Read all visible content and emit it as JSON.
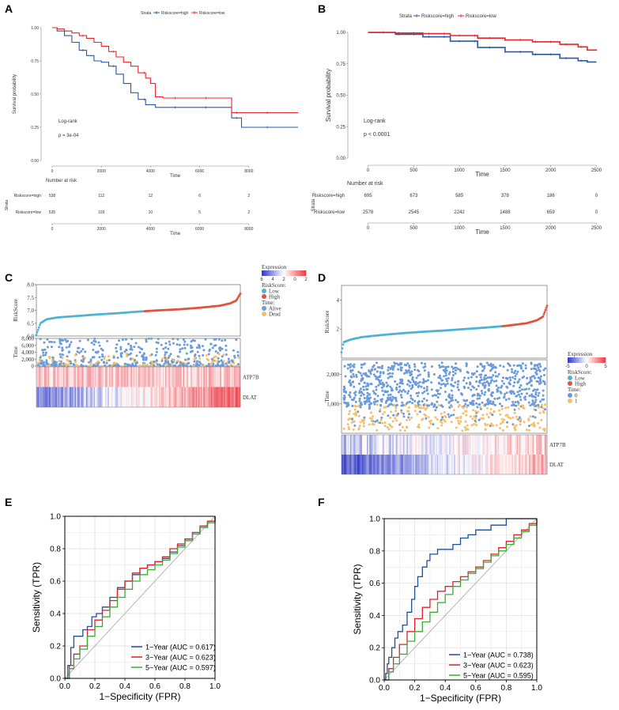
{
  "colors": {
    "high": "#2b5aa5",
    "low": "#e8242a",
    "risk_low": "#4eb3d3",
    "risk_high": "#e0533d",
    "alive": "#6b9bd8",
    "dead": "#f5c06b",
    "roc_1": "#1f4e9a",
    "roc_3": "#e0202a",
    "roc_5": "#3aaa35",
    "diag": "#b5b5b5"
  },
  "panels": {
    "A": {
      "letter": "A"
    },
    "B": {
      "letter": "B"
    },
    "C": {
      "letter": "C"
    },
    "D": {
      "letter": "D"
    },
    "E": {
      "letter": "E"
    },
    "F": {
      "letter": "F"
    }
  },
  "chart_data": [
    {
      "id": "A",
      "type": "line",
      "kind": "kaplan-meier",
      "title": "",
      "legend_title": "Strata",
      "legend": [
        "Riskscore=high",
        "Riskscore=low"
      ],
      "xlabel": "Time",
      "ylabel": "Survival probability",
      "xlim": [
        0,
        10000
      ],
      "ylim": [
        0,
        1
      ],
      "xticks": [
        0,
        2000,
        4000,
        6000,
        8000
      ],
      "xtick_labels": [
        "0",
        "2000",
        "4000",
        "6000",
        "8000"
      ],
      "yticks": [
        0,
        0.25,
        0.5,
        0.75,
        1
      ],
      "ytick_labels": [
        "0.00",
        "0.25",
        "0.50",
        "0.75",
        "1.00"
      ],
      "annotation_lines": [
        "Log-rank",
        "p = 3e-04"
      ],
      "series": [
        {
          "name": "Riskscore=high",
          "x": [
            0,
            200,
            500,
            800,
            1100,
            1400,
            1700,
            2000,
            2300,
            2600,
            2900,
            3200,
            3500,
            3800,
            4200,
            4700,
            5500,
            6500,
            7300,
            7700,
            8500,
            10000
          ],
          "values": [
            1.0,
            0.975,
            0.94,
            0.89,
            0.83,
            0.79,
            0.75,
            0.74,
            0.71,
            0.65,
            0.58,
            0.51,
            0.46,
            0.42,
            0.4,
            0.4,
            0.4,
            0.4,
            0.32,
            0.25,
            0.25,
            0.25
          ]
        },
        {
          "name": "Riskscore=low",
          "x": [
            0,
            200,
            500,
            800,
            1100,
            1400,
            1700,
            2000,
            2300,
            2600,
            2900,
            3200,
            3500,
            3800,
            4000,
            4200,
            4500,
            5500,
            7300,
            8500,
            10000
          ],
          "values": [
            1.0,
            0.99,
            0.975,
            0.96,
            0.94,
            0.92,
            0.89,
            0.86,
            0.82,
            0.78,
            0.74,
            0.71,
            0.66,
            0.62,
            0.58,
            0.48,
            0.47,
            0.47,
            0.36,
            0.36,
            0.36
          ]
        }
      ],
      "risk_table": {
        "title": "Number at risk",
        "ylabel": "Strata",
        "xlabel": "Time",
        "times": [
          "0",
          "2000",
          "4000",
          "6000",
          "8000"
        ],
        "rows": [
          {
            "label": "Riskscore=high",
            "values": [
              "538",
              "112",
              "12",
              "6",
              "2"
            ]
          },
          {
            "label": "Riskscore=low",
            "values": [
              "535",
              "109",
              "10",
              "5",
              "2"
            ]
          }
        ]
      }
    },
    {
      "id": "B",
      "type": "line",
      "kind": "kaplan-meier",
      "title": "",
      "legend_title": "Strata",
      "legend": [
        "Riskscore=high",
        "Riskscore=low"
      ],
      "xlabel": "Time",
      "ylabel": "Survival probability",
      "xlim": [
        -100,
        2600
      ],
      "ylim": [
        0,
        1
      ],
      "xticks": [
        0,
        500,
        1000,
        1500,
        2000,
        2500
      ],
      "xtick_labels": [
        "0",
        "500",
        "1000",
        "1500",
        "2000",
        "2500"
      ],
      "yticks": [
        0,
        0.25,
        0.5,
        0.75,
        1
      ],
      "ytick_labels": [
        "0.00",
        "0.25",
        "0.50",
        "0.75",
        "1.00"
      ],
      "annotation_lines": [
        "Log-rank",
        "p < 0.0001"
      ],
      "series": [
        {
          "name": "Riskscore=high",
          "x": [
            0,
            300,
            600,
            900,
            1200,
            1500,
            1800,
            2100,
            2300,
            2400,
            2500
          ],
          "values": [
            1.0,
            0.985,
            0.965,
            0.93,
            0.88,
            0.845,
            0.825,
            0.795,
            0.775,
            0.765,
            0.765
          ]
        },
        {
          "name": "Riskscore=low",
          "x": [
            0,
            300,
            600,
            900,
            1200,
            1500,
            1800,
            2100,
            2300,
            2400,
            2500
          ],
          "values": [
            1.0,
            0.995,
            0.99,
            0.975,
            0.955,
            0.94,
            0.925,
            0.905,
            0.885,
            0.86,
            0.855
          ]
        }
      ],
      "risk_table": {
        "title": "Number at risk",
        "ylabel": "Strata",
        "xlabel": "Time",
        "times": [
          "0",
          "500",
          "1000",
          "1500",
          "2000",
          "2500"
        ],
        "rows": [
          {
            "label": "Riskscore=high",
            "values": [
              "695",
              "673",
              "585",
              "378",
              "186",
              "0"
            ]
          },
          {
            "label": "Riskscore=low",
            "values": [
              "2578",
              "2545",
              "2242",
              "1488",
              "659",
              "0"
            ]
          }
        ]
      }
    },
    {
      "id": "C",
      "type": "scatter",
      "kind": "risk-score-distribution",
      "ylabel_top": "RiskScore",
      "ylim_top": [
        6.0,
        8.0
      ],
      "yticks_top": [
        "6.0",
        "6.5",
        "7.0",
        "7.5",
        "8.0"
      ],
      "riskscore_curve": {
        "rank_fraction": [
          0,
          0.02,
          0.05,
          0.1,
          0.2,
          0.3,
          0.4,
          0.5,
          0.6,
          0.7,
          0.8,
          0.9,
          0.95,
          0.98,
          1.0
        ],
        "values": [
          6.05,
          6.5,
          6.65,
          6.72,
          6.78,
          6.84,
          6.89,
          6.95,
          7.0,
          7.04,
          7.1,
          7.18,
          7.27,
          7.38,
          7.65
        ]
      },
      "cutoff_fraction": 0.53,
      "ylabel_mid": "Time",
      "ylim_mid": [
        0,
        8000
      ],
      "yticks_mid": [
        "0",
        "2,000",
        "4,000",
        "6,000",
        "8,000"
      ],
      "heatmap_genes": [
        "ATP7B",
        "DLAT"
      ],
      "legend": {
        "expression_title": "Expression",
        "expression_ticks": [
          "6",
          "4",
          "2",
          "0",
          "2"
        ],
        "riskscore_title": "RiskScore:",
        "riskscore_items": [
          "Low",
          "High"
        ],
        "time_title": "Time:",
        "time_items": [
          "Alive",
          "Dead"
        ]
      }
    },
    {
      "id": "D",
      "type": "scatter",
      "kind": "risk-score-distribution",
      "ylabel_top": "RiskScore",
      "ylim_top": [
        0,
        5
      ],
      "yticks_top": [
        "2",
        "4"
      ],
      "riskscore_curve": {
        "rank_fraction": [
          0,
          0.01,
          0.05,
          0.1,
          0.2,
          0.3,
          0.4,
          0.5,
          0.6,
          0.7,
          0.8,
          0.9,
          0.95,
          0.98,
          1.0
        ],
        "values": [
          0.4,
          1.1,
          1.3,
          1.45,
          1.6,
          1.72,
          1.82,
          1.9,
          2.0,
          2.1,
          2.22,
          2.4,
          2.6,
          2.85,
          3.6
        ]
      },
      "cutoff_fraction": 0.78,
      "ylabel_mid": "Time",
      "ylim_mid": [
        0,
        2500
      ],
      "yticks_mid": [
        "1,000",
        "2,000"
      ],
      "heatmap_genes": [
        "ATP7B",
        "DLAT"
      ],
      "legend": {
        "expression_title": "Expression",
        "expression_ticks": [
          "-5",
          "0",
          "5"
        ],
        "riskscore_title": "RiskScore:",
        "riskscore_items": [
          "Low",
          "High"
        ],
        "time_title": "Time:",
        "time_items": [
          "0",
          "1"
        ]
      }
    },
    {
      "id": "E",
      "type": "line",
      "kind": "roc",
      "xlabel": "1−Specificity (FPR)",
      "ylabel": "Sensitivity (TPR)",
      "xlim": [
        0,
        1
      ],
      "ylim": [
        0,
        1
      ],
      "ticks": [
        "0.0",
        "0.2",
        "0.4",
        "0.6",
        "0.8",
        "1.0"
      ],
      "series": [
        {
          "name": "1−Year (AUC = 0.617)",
          "x": [
            0,
            0.02,
            0.04,
            0.06,
            0.08,
            0.1,
            0.12,
            0.15,
            0.18,
            0.21,
            0.25,
            0.3,
            0.35,
            0.4,
            0.45,
            0.5,
            0.55,
            0.6,
            0.65,
            0.7,
            0.75,
            0.8,
            0.85,
            0.9,
            0.95,
            1.0
          ],
          "values": [
            0,
            0.08,
            0.19,
            0.26,
            0.26,
            0.26,
            0.3,
            0.32,
            0.38,
            0.4,
            0.44,
            0.5,
            0.56,
            0.6,
            0.64,
            0.68,
            0.7,
            0.72,
            0.74,
            0.78,
            0.82,
            0.86,
            0.9,
            0.93,
            0.97,
            1.0
          ]
        },
        {
          "name": "3−Year (AUC = 0.623)",
          "x": [
            0,
            0.03,
            0.06,
            0.1,
            0.15,
            0.2,
            0.25,
            0.3,
            0.35,
            0.4,
            0.45,
            0.5,
            0.55,
            0.6,
            0.65,
            0.7,
            0.75,
            0.8,
            0.85,
            0.9,
            0.95,
            1.0
          ],
          "values": [
            0,
            0.08,
            0.15,
            0.2,
            0.3,
            0.36,
            0.42,
            0.48,
            0.55,
            0.6,
            0.65,
            0.68,
            0.7,
            0.72,
            0.75,
            0.8,
            0.83,
            0.86,
            0.9,
            0.94,
            0.97,
            1.0
          ]
        },
        {
          "name": "5−Year (AUC = 0.597)",
          "x": [
            0,
            0.03,
            0.06,
            0.1,
            0.15,
            0.2,
            0.25,
            0.3,
            0.35,
            0.4,
            0.45,
            0.5,
            0.55,
            0.6,
            0.65,
            0.7,
            0.75,
            0.8,
            0.85,
            0.9,
            0.95,
            1.0
          ],
          "values": [
            0,
            0.06,
            0.12,
            0.18,
            0.26,
            0.32,
            0.38,
            0.44,
            0.5,
            0.55,
            0.6,
            0.64,
            0.67,
            0.7,
            0.73,
            0.77,
            0.81,
            0.85,
            0.89,
            0.93,
            0.96,
            1.0
          ]
        }
      ]
    },
    {
      "id": "F",
      "type": "line",
      "kind": "roc",
      "xlabel": "1−Specificity (FPR)",
      "ylabel": "Sensitivity (TPR)",
      "xlim": [
        0,
        1
      ],
      "ylim": [
        0,
        1
      ],
      "ticks": [
        "0.0",
        "0.2",
        "0.4",
        "0.6",
        "0.8",
        "1.0"
      ],
      "series": [
        {
          "name": "1−Year (AUC = 0.738)",
          "x": [
            0,
            0.01,
            0.02,
            0.03,
            0.05,
            0.07,
            0.09,
            0.12,
            0.15,
            0.18,
            0.2,
            0.22,
            0.25,
            0.28,
            0.3,
            0.35,
            0.4,
            0.45,
            0.5,
            0.55,
            0.6,
            0.7,
            0.8,
            0.9,
            1.0
          ],
          "values": [
            0,
            0.04,
            0.1,
            0.14,
            0.2,
            0.26,
            0.3,
            0.34,
            0.42,
            0.5,
            0.58,
            0.64,
            0.7,
            0.74,
            0.78,
            0.81,
            0.81,
            0.84,
            0.88,
            0.9,
            0.93,
            0.96,
            1.0,
            1.0,
            1.0
          ]
        },
        {
          "name": "3−Year (AUC = 0.623)",
          "x": [
            0,
            0.03,
            0.06,
            0.1,
            0.15,
            0.2,
            0.25,
            0.3,
            0.35,
            0.4,
            0.45,
            0.5,
            0.55,
            0.6,
            0.65,
            0.7,
            0.75,
            0.8,
            0.85,
            0.9,
            0.95,
            1.0
          ],
          "values": [
            0,
            0.07,
            0.14,
            0.22,
            0.3,
            0.38,
            0.45,
            0.5,
            0.55,
            0.58,
            0.61,
            0.64,
            0.67,
            0.7,
            0.74,
            0.78,
            0.82,
            0.86,
            0.9,
            0.93,
            0.97,
            1.0
          ]
        },
        {
          "name": "5−Year (AUC = 0.595)",
          "x": [
            0,
            0.03,
            0.06,
            0.1,
            0.15,
            0.2,
            0.25,
            0.3,
            0.35,
            0.4,
            0.45,
            0.5,
            0.55,
            0.6,
            0.65,
            0.7,
            0.75,
            0.8,
            0.85,
            0.9,
            0.95,
            1.0
          ],
          "values": [
            0,
            0.05,
            0.1,
            0.16,
            0.24,
            0.3,
            0.36,
            0.42,
            0.48,
            0.53,
            0.58,
            0.62,
            0.66,
            0.69,
            0.73,
            0.77,
            0.8,
            0.84,
            0.88,
            0.92,
            0.96,
            1.0
          ]
        }
      ]
    }
  ]
}
